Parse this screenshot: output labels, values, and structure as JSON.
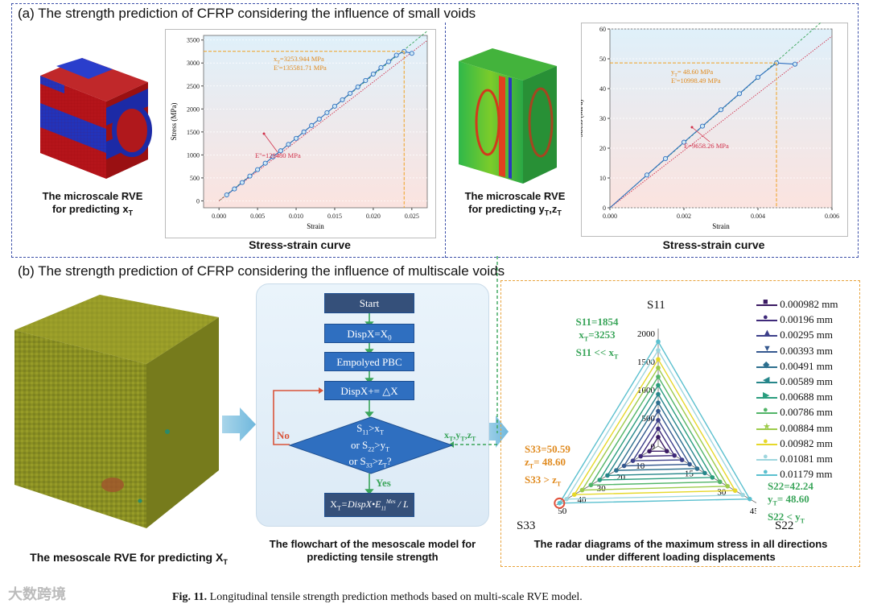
{
  "section_a": {
    "title": "(a) The strength prediction of CFRP considering the influence of small voids",
    "left": {
      "caption_line1": "The microscale RVE",
      "caption_line2": "for predicting x",
      "caption_sub": "T",
      "plot_caption": "Stress-strain curve",
      "chart_data": {
        "type": "line",
        "xlabel": "Strain",
        "ylabel": "Stress (MPa)",
        "xlim": [
          -0.002,
          0.027
        ],
        "ylim": [
          -150,
          3600
        ],
        "xticks": [
          "0.000",
          "0.005",
          "0.010",
          "0.015",
          "0.020",
          "0.025"
        ],
        "yticks": [
          "0",
          "500",
          "1000",
          "1500",
          "2000",
          "2500",
          "3000",
          "3500"
        ],
        "series": [
          {
            "x": [
              0.001,
              0.002,
              0.003,
              0.004,
              0.005,
              0.006,
              0.007,
              0.008,
              0.009,
              0.01,
              0.011,
              0.012,
              0.013,
              0.014,
              0.015,
              0.016,
              0.017,
              0.018,
              0.019,
              0.02,
              0.021,
              0.022,
              0.023,
              0.024,
              0.025
            ],
            "y": [
              130,
              260,
              400,
              540,
              680,
              820,
              960,
              1090,
              1230,
              1360,
              1500,
              1640,
              1780,
              1920,
              2060,
              2200,
              2340,
              2480,
              2620,
              2760,
              2900,
              3030,
              3170,
              3253,
              3210
            ]
          }
        ],
        "annotations": [
          {
            "text": "x",
            "sub": "T",
            "rest": "=3253.944 MPa"
          },
          {
            "text": "E'=135581.71 MPa"
          },
          {
            "text": "E''=128480 MPa"
          }
        ]
      }
    },
    "right": {
      "caption_line1": "The microscale RVE",
      "caption_line2": "for predicting y",
      "caption_sub1": "T",
      "caption_mid": ",z",
      "caption_sub2": "T",
      "plot_caption": "Stress-strain curve",
      "chart_data": {
        "type": "line",
        "xlabel": "Strain",
        "ylabel": "Stress (MPa)",
        "xlim": [
          0,
          0.006
        ],
        "ylim": [
          0,
          60
        ],
        "xticks": [
          "0.000",
          "0.002",
          "0.004",
          "0.006"
        ],
        "yticks": [
          "0",
          "10",
          "20",
          "30",
          "40",
          "50",
          "60"
        ],
        "series": [
          {
            "x": [
              0.0,
              0.0005,
              0.001,
              0.0015,
              0.002,
              0.0025,
              0.003,
              0.0035,
              0.004,
              0.0045,
              0.005
            ],
            "y": [
              0,
              5.5,
              11,
              16.5,
              22,
              27.4,
              32.9,
              38.3,
              43.8,
              48.6,
              48.2
            ]
          }
        ],
        "annotations": [
          {
            "text": "y",
            "sub": "T",
            "rest": "= 48.60 MPa"
          },
          {
            "text": "E'=10998.49 MPa"
          },
          {
            "text": "E=9658.26 MPa"
          }
        ]
      }
    }
  },
  "section_b": {
    "title": "(b) The strength prediction of CFRP considering the influence of multiscale voids",
    "meso_caption": "The mesoscale RVE for predicting X",
    "meso_sub": "T",
    "flowchart": {
      "start": "Start",
      "step1": "DispX=X",
      "step1_sub": "0",
      "step2": "Empolyed PBC",
      "step3": "DispX+= △X",
      "decision_l1": "S",
      "decision_l1_sub": "11",
      "decision_l1_rest": ">x",
      "decision_l1_sub2": "T",
      "decision_l2": "or S",
      "decision_l2_sub": "22",
      "decision_l2_rest": ">y",
      "decision_l2_sub2": "T",
      "decision_l3": "or S",
      "decision_l3_sub": "33",
      "decision_l3_rest": ">z",
      "decision_l3_sub2": "T",
      "decision_l3_end": "?",
      "no": "No",
      "yes": "Yes",
      "result": "X",
      "result_sub": "T",
      "result_formula": "=DispX•E",
      "result_sub2": "11",
      "result_sup2": "Mes",
      "result_denom": "L",
      "side_label": "x",
      "side_sub1": "T",
      "side_mid": ",y",
      "side_sub2": "T",
      "side_mid2": ",z",
      "side_sub3": "T",
      "caption_line1": "The flowchart of the mesoscale model for",
      "caption_line2": "predicting tensile strength"
    },
    "radar": {
      "caption_line1": "The radar diagrams of the maximum stress in all directions",
      "caption_line2": "under different loading displacements",
      "axis_top": "S11",
      "axis_left": "S33",
      "axis_right": "S22",
      "note_s11_1": "S11=1854",
      "note_s11_2": "x",
      "note_s11_2sub": "T",
      "note_s11_2rest": "=3253",
      "note_s11_3": "S11 << x",
      "note_s11_3sub": "T",
      "note_s33_1": "S33=50.59",
      "note_s33_2": "z",
      "note_s33_2sub": "T",
      "note_s33_2rest": "= 48.60",
      "note_s33_3": "S33 > z",
      "note_s33_3sub": "T",
      "note_s22_1": "S22=42.24",
      "note_s22_2": "y",
      "note_s22_2sub": "T",
      "note_s22_2rest": "= 48.60",
      "note_s22_3": "S22 < y",
      "note_s22_3sub": "T",
      "chart_data": {
        "type": "radar",
        "axes": [
          "S11",
          "S22",
          "S33"
        ],
        "s11_ticks": [
          "0",
          "500",
          "1000",
          "1500",
          "2000"
        ],
        "s22_ticks": [
          "15",
          "30",
          "45"
        ],
        "s33_ticks": [
          "10",
          "20",
          "30",
          "40",
          "50"
        ],
        "s11_max": 2000,
        "s22_max": 45,
        "s33_max": 50,
        "series": [
          {
            "name": "0.000982 mm",
            "color": "#3b1a63",
            "s11": 160,
            "s22": 4,
            "s33": 4.5
          },
          {
            "name": "0.00196 mm",
            "color": "#3f2a7a",
            "s11": 310,
            "s22": 7.5,
            "s33": 9
          },
          {
            "name": "0.00295 mm",
            "color": "#3d3f8a",
            "s11": 460,
            "s22": 11,
            "s33": 13
          },
          {
            "name": "0.00393 mm",
            "color": "#35588f",
            "s11": 620,
            "s22": 14.5,
            "s33": 17.5
          },
          {
            "name": "0.00491 mm",
            "color": "#2d6f8e",
            "s11": 770,
            "s22": 18,
            "s33": 21.5
          },
          {
            "name": "0.00589 mm",
            "color": "#26868a",
            "s11": 920,
            "s22": 21.5,
            "s33": 26
          },
          {
            "name": "0.00688 mm",
            "color": "#2a9d7e",
            "s11": 1080,
            "s22": 25,
            "s33": 30
          },
          {
            "name": "0.00786 mm",
            "color": "#52b568",
            "s11": 1230,
            "s22": 28.5,
            "s33": 34.5
          },
          {
            "name": "0.00884 mm",
            "color": "#9dcb4a",
            "s11": 1390,
            "s22": 32,
            "s33": 39
          },
          {
            "name": "0.00982 mm",
            "color": "#e6d82a",
            "s11": 1540,
            "s22": 35.5,
            "s33": 43
          },
          {
            "name": "0.01081 mm",
            "color": "#9ed6de",
            "s11": 1700,
            "s22": 39,
            "s33": 47
          },
          {
            "name": "0.01179 mm",
            "color": "#5bc0cf",
            "s11": 1854,
            "s22": 42.24,
            "s33": 50.59
          }
        ]
      }
    }
  },
  "figure_caption_bold": "Fig. 11.",
  "figure_caption": "Longitudinal tensile strength prediction methods based on multi-scale RVE model.",
  "watermark": "大数跨境"
}
